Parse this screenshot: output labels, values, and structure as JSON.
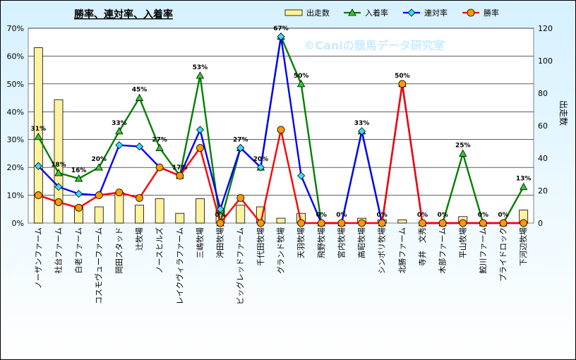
{
  "chart_data": {
    "type": "bar-line-combo",
    "title": "勝率、連対率、入着率",
    "watermark": "©Caniの競馬データ研究室",
    "ylabel_right": "出走数",
    "ylim_left": [
      0,
      70
    ],
    "ylim_right": [
      0,
      120
    ],
    "y_ticks_left": [
      "0%",
      "10%",
      "20%",
      "30%",
      "40%",
      "50%",
      "60%",
      "70%"
    ],
    "y_ticks_right": [
      "0",
      "20",
      "40",
      "60",
      "80",
      "100",
      "120"
    ],
    "categories": [
      "ノーザンファーム",
      "社台ファーム",
      "白老ファーム",
      "コスモヴューファーム",
      "岡田スタッド",
      "辻牧場",
      "ノースヒルズ",
      "レイクヴィラファーム",
      "三嶋牧場",
      "沖田牧場",
      "ビッグレッドファーム",
      "千代田牧場",
      "グランド牧場",
      "天羽牧場",
      "飛野牧場",
      "宮内牧場",
      "高昭牧場",
      "シンボリ牧場",
      "北勝ファーム",
      "寺井　文秀",
      "木部ファーム",
      "平山牧場",
      "鮫川ファーム",
      "プライドロック",
      "下河辺牧場"
    ],
    "legend": [
      {
        "name": "出走数",
        "color": "#ffe97a"
      },
      {
        "name": "入着率",
        "color": "#008000"
      },
      {
        "name": "連対率",
        "color": "#0000ff"
      },
      {
        "name": "勝率",
        "color": "#ff0000"
      }
    ],
    "series": [
      {
        "name": "出走数",
        "axis": "right",
        "kind": "bar",
        "values": [
          108,
          76,
          10,
          10,
          19,
          11,
          15,
          6,
          15,
          9,
          11,
          10,
          3,
          6,
          0,
          0,
          3,
          2,
          2,
          0,
          0,
          4,
          0,
          0,
          8
        ]
      },
      {
        "name": "入着率",
        "axis": "left",
        "kind": "line",
        "values": [
          31,
          18,
          16,
          20,
          33,
          45,
          27,
          17,
          53,
          0,
          27,
          20,
          67,
          50,
          0,
          0,
          33,
          0,
          50,
          0,
          0,
          25,
          0,
          0,
          13
        ]
      },
      {
        "name": "連対率",
        "axis": "left",
        "kind": "line",
        "values": [
          20.5,
          13,
          10.5,
          10,
          28,
          27.5,
          20,
          17,
          33.5,
          5,
          27,
          20,
          67,
          17,
          0,
          0,
          33,
          0,
          50,
          0,
          0,
          0,
          0,
          0,
          0
        ]
      },
      {
        "name": "勝率",
        "axis": "left",
        "kind": "line",
        "values": [
          10,
          7.5,
          5.5,
          10,
          11,
          9,
          20,
          17,
          27,
          0,
          9,
          0,
          33.5,
          0,
          0,
          0,
          0,
          0,
          50,
          0,
          0,
          0,
          0,
          0,
          0
        ]
      }
    ],
    "data_labels": [
      "31%",
      "18%",
      "16%",
      "20%",
      "33%",
      "45%",
      "27%",
      "17%",
      "53%",
      "0%",
      "27%",
      "20%",
      "67%",
      "50%",
      "0%",
      "0%",
      "33%",
      "0%",
      "50%",
      "0%",
      "0%",
      "25%",
      "0%",
      "0%",
      "13%"
    ],
    "grid": true,
    "legend_position": "top"
  }
}
